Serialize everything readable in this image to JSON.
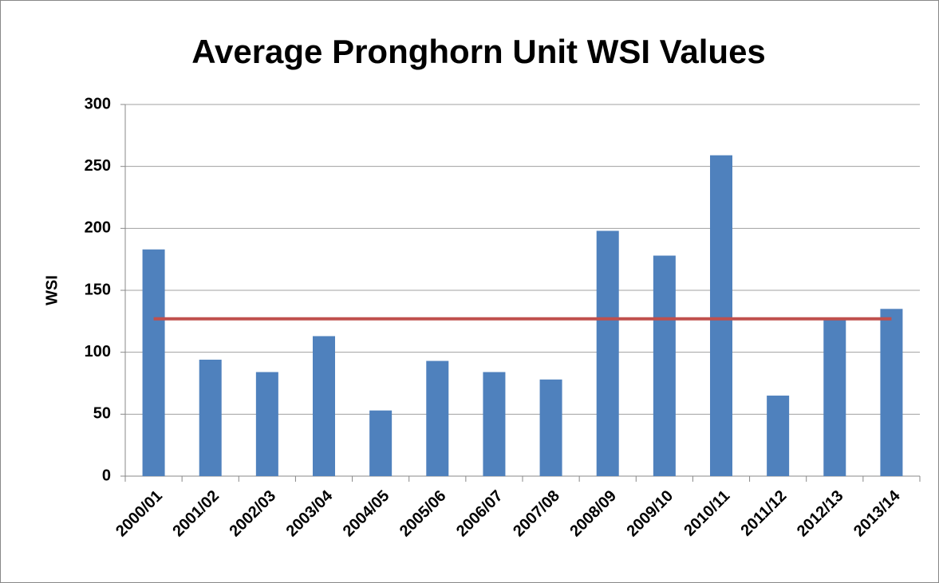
{
  "chart_data": {
    "type": "bar",
    "title": "Average Pronghorn  Unit WSI Values",
    "y_label": "WSI",
    "categories": [
      "2000/01",
      "2001/02",
      "2002/03",
      "2003/04",
      "2004/05",
      "2005/06",
      "2006/07",
      "2007/08",
      "2008/09",
      "2009/10",
      "2010/11",
      "2011/12",
      "2012/13",
      "2013/14"
    ],
    "values": [
      183,
      94,
      84,
      113,
      53,
      93,
      84,
      78,
      198,
      178,
      259,
      65,
      128,
      135
    ],
    "color": "#4f81bd",
    "reference_line": {
      "value": 127,
      "color": "#c0504d"
    },
    "ylim": [
      0,
      300
    ],
    "yticks": [
      0,
      50,
      100,
      150,
      200,
      250,
      300
    ],
    "grid": true
  }
}
